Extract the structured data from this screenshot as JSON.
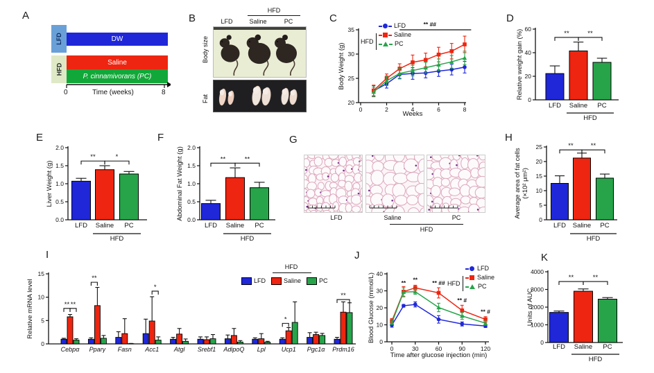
{
  "colors": {
    "lfd": "#1f27d9",
    "saline": "#ee2510",
    "pc": "#27a44a",
    "lfd_box": "#6aa0d8",
    "hfd_box": "#dfe9c6"
  },
  "panels": {
    "A": {
      "letter": "A",
      "lfd": "LFD",
      "hfd": "HFD",
      "dw": "DW",
      "saline": "Saline",
      "pc": "P. cinnamivorans (PC)",
      "tick_start": "0",
      "tick_end": "8",
      "axis_label": "Time (weeks)"
    },
    "B": {
      "letter": "B",
      "hfd": "HFD",
      "cols": [
        "LFD",
        "Saline",
        "PC"
      ],
      "rows": [
        "Body size",
        "Fat"
      ]
    },
    "C": {
      "letter": "C",
      "legend": [
        "LFD",
        "Saline",
        "PC"
      ],
      "hfd": "HFD"
    },
    "D": {
      "letter": "D"
    },
    "E": {
      "letter": "E"
    },
    "F": {
      "letter": "F"
    },
    "G": {
      "letter": "G",
      "cols": [
        "LFD",
        "Saline",
        "PC"
      ],
      "hfd": "HFD"
    },
    "H": {
      "letter": "H"
    },
    "I": {
      "letter": "I",
      "legend": [
        "LFD",
        "Saline",
        "PC"
      ],
      "hfd": "HFD"
    },
    "J": {
      "letter": "J",
      "legend": [
        "LFD",
        "Saline",
        "PC"
      ],
      "hfd": "HFD"
    },
    "K": {
      "letter": "K"
    }
  },
  "chart_data": [
    {
      "panel": "C",
      "type": "line",
      "ylabel": "Body Weight (g)",
      "xlabel": "Weeks",
      "ylim": [
        20,
        35
      ],
      "yticks": [
        20,
        25,
        30,
        35
      ],
      "ytick_labels": [
        "20",
        "25",
        "30",
        "35"
      ],
      "xticks": [
        0,
        2,
        4,
        6,
        8
      ],
      "xtick_labels": [
        "0",
        "2",
        "4",
        "6",
        "8"
      ],
      "x": [
        1,
        2,
        3,
        4,
        5,
        6,
        7,
        8
      ],
      "series": [
        {
          "name": "LFD",
          "color": "#1f27d9",
          "marker": "circle",
          "values": [
            22.4,
            23.9,
            25.8,
            26.0,
            26.1,
            26.5,
            26.8,
            27.3
          ],
          "errors": [
            1.1,
            0.9,
            0.9,
            1.2,
            1.0,
            1.1,
            1.1,
            1.2
          ]
        },
        {
          "name": "Saline",
          "color": "#ee2510",
          "marker": "square",
          "values": [
            22.5,
            25.0,
            27.0,
            28.3,
            28.8,
            29.9,
            30.6,
            32.0
          ],
          "errors": [
            1.1,
            0.9,
            1.0,
            1.5,
            1.4,
            1.5,
            1.6,
            1.7
          ]
        },
        {
          "name": "PC",
          "color": "#27a44a",
          "marker": "triangle",
          "values": [
            22.2,
            24.5,
            26.0,
            26.6,
            27.2,
            27.8,
            28.4,
            29.2
          ],
          "errors": [
            1.0,
            1.0,
            1.0,
            1.1,
            1.1,
            1.2,
            1.3,
            1.4
          ]
        }
      ],
      "sig_line": {
        "x1": 3,
        "x2": 8.5,
        "y": 35,
        "label": "** ##"
      }
    },
    {
      "panel": "D",
      "type": "bar",
      "ylabel": "Relative weight gain (%)",
      "ylim": [
        0,
        60
      ],
      "yticks": [
        0,
        20,
        40,
        60
      ],
      "ytick_labels": [
        "0",
        "20",
        "40",
        "60"
      ],
      "categories": [
        "LFD",
        "Saline",
        "PC"
      ],
      "values": [
        22.3,
        41.5,
        31.8
      ],
      "errors": [
        6.5,
        7.5,
        3.5
      ],
      "colors": [
        "#1f27d9",
        "#ee2510",
        "#27a44a"
      ],
      "group_label": "HFD",
      "sig": [
        {
          "from": 0,
          "to": 1,
          "label": "**",
          "y": 53
        },
        {
          "from": 1,
          "to": 2,
          "label": "**",
          "y": 53
        }
      ]
    },
    {
      "panel": "E",
      "type": "bar",
      "ylabel": "Liver Weight (g)",
      "ylim": [
        0,
        2
      ],
      "yticks": [
        0,
        0.5,
        1,
        1.5,
        2
      ],
      "ytick_labels": [
        "0.0",
        "0.5",
        "1.0",
        "1.5",
        "2.0"
      ],
      "categories": [
        "LFD",
        "Saline",
        "PC"
      ],
      "values": [
        1.07,
        1.39,
        1.27
      ],
      "errors": [
        0.08,
        0.11,
        0.07
      ],
      "colors": [
        "#1f27d9",
        "#ee2510",
        "#27a44a"
      ],
      "group_label": "HFD",
      "sig": [
        {
          "from": 0,
          "to": 1,
          "label": "**",
          "y": 1.63
        },
        {
          "from": 1,
          "to": 2,
          "label": "*",
          "y": 1.63
        }
      ]
    },
    {
      "panel": "F",
      "type": "bar",
      "ylabel": "Abdominal Fat Weight (g)",
      "ylim": [
        0,
        2
      ],
      "yticks": [
        0,
        0.5,
        1,
        1.5,
        2
      ],
      "ytick_labels": [
        "0.0",
        "0.5",
        "1.0",
        "1.5",
        "2.0"
      ],
      "categories": [
        "LFD",
        "Saline",
        "PC"
      ],
      "values": [
        0.45,
        1.17,
        0.89
      ],
      "errors": [
        0.09,
        0.27,
        0.15
      ],
      "colors": [
        "#1f27d9",
        "#ee2510",
        "#27a44a"
      ],
      "group_label": "HFD",
      "sig": [
        {
          "from": 0,
          "to": 1,
          "label": "**",
          "y": 1.57
        },
        {
          "from": 1,
          "to": 2,
          "label": "**",
          "y": 1.57
        }
      ]
    },
    {
      "panel": "H",
      "type": "bar",
      "ylabel_lines": [
        "Average area of fat cells",
        "(×10² μm²)"
      ],
      "ylim": [
        0,
        25
      ],
      "yticks": [
        0,
        5,
        10,
        15,
        20,
        25
      ],
      "ytick_labels": [
        "0",
        "5",
        "10",
        "15",
        "20",
        "25"
      ],
      "categories": [
        "LFD",
        "Saline",
        "PC"
      ],
      "values": [
        12.5,
        21.2,
        14.3
      ],
      "errors": [
        2.6,
        1.7,
        1.4
      ],
      "colors": [
        "#1f27d9",
        "#ee2510",
        "#27a44a"
      ],
      "group_label": "HFD",
      "sig": [
        {
          "from": 0,
          "to": 1,
          "label": "**",
          "y": 24
        },
        {
          "from": 1,
          "to": 2,
          "label": "**",
          "y": 24
        }
      ]
    },
    {
      "panel": "K",
      "type": "bar",
      "ylabel": "Units of AUC",
      "ylim": [
        0,
        4000
      ],
      "yticks": [
        0,
        1000,
        2000,
        3000,
        4000
      ],
      "ytick_labels": [
        "0",
        "1000",
        "2000",
        "3000",
        "4000"
      ],
      "categories": [
        "LFD",
        "Saline",
        "PC"
      ],
      "values": [
        1700,
        2900,
        2450
      ],
      "errors": [
        80,
        130,
        90
      ],
      "colors": [
        "#1f27d9",
        "#ee2510",
        "#27a44a"
      ],
      "group_label": "HFD",
      "sig": [
        {
          "from": 0,
          "to": 1,
          "label": "**",
          "y": 3450
        },
        {
          "from": 1,
          "to": 2,
          "label": "**",
          "y": 3450
        }
      ]
    },
    {
      "panel": "I",
      "type": "grouped-bar",
      "ylabel": "Relative mRNA level",
      "ylim": [
        0,
        15
      ],
      "yticks": [
        0,
        5,
        10,
        15
      ],
      "ytick_labels": [
        "0",
        "5",
        "10",
        "15"
      ],
      "categories": [
        "Cebpα",
        "Pparγ",
        "Fasn",
        "Acc1",
        "Atgl",
        "Srebf1",
        "AdipoQ",
        "Lpl",
        "Ucp1",
        "Pgc1α",
        "Prdm16"
      ],
      "series": [
        {
          "name": "LFD",
          "color": "#1f27d9",
          "values": [
            1.0,
            1.0,
            1.4,
            2.2,
            1.0,
            1.0,
            1.1,
            1.0,
            1.0,
            1.4,
            1.0
          ],
          "errors": [
            0.2,
            0.3,
            1.2,
            3.1,
            0.4,
            0.5,
            0.8,
            0.3,
            0.3,
            1.0,
            0.4
          ]
        },
        {
          "name": "Saline",
          "color": "#ee2510",
          "values": [
            5.8,
            8.2,
            2.2,
            4.9,
            2.1,
            0.9,
            1.8,
            1.1,
            2.8,
            2.0,
            6.8
          ],
          "errors": [
            0.5,
            3.9,
            3.2,
            5.2,
            1.2,
            0.6,
            1.5,
            1.1,
            0.7,
            0.5,
            2.2
          ]
        },
        {
          "name": "PC",
          "color": "#27a44a",
          "values": [
            0.8,
            1.2,
            0.05,
            0.8,
            0.55,
            1.1,
            0.4,
            0.35,
            4.6,
            1.8,
            6.7
          ],
          "errors": [
            0.3,
            0.6,
            0.05,
            0.7,
            0.5,
            0.9,
            0.3,
            0.2,
            4.4,
            0.45,
            2.1
          ]
        }
      ],
      "sig": [
        {
          "cat": 0,
          "pair": [
            0,
            1
          ],
          "label": "**",
          "y": 7.6
        },
        {
          "cat": 0,
          "pair": [
            1,
            2
          ],
          "label": "**",
          "y": 7.6
        },
        {
          "cat": 1,
          "pair": [
            0,
            1
          ],
          "label": "**",
          "y": 13.2
        },
        {
          "cat": 3,
          "pair": [
            1,
            2
          ],
          "label": "*",
          "y": 11.3
        },
        {
          "cat": 8,
          "pair": [
            0,
            1
          ],
          "label": "*",
          "y": 4.4
        },
        {
          "cat": 10,
          "pair": [
            0,
            2
          ],
          "label": "**",
          "y": 9.5
        }
      ]
    },
    {
      "panel": "J",
      "type": "line",
      "ylabel": "Blood Glucose (mmol/L)",
      "xlabel": "Time after glucose injection (min)",
      "ylim": [
        0,
        40
      ],
      "yticks": [
        0,
        10,
        20,
        30,
        40
      ],
      "ytick_labels": [
        "0",
        "10",
        "20",
        "30",
        "40"
      ],
      "xticks": [
        0,
        30,
        60,
        90,
        120
      ],
      "xtick_labels": [
        "0",
        "30",
        "60",
        "90",
        "120"
      ],
      "x": [
        0,
        15,
        30,
        60,
        90,
        120
      ],
      "series": [
        {
          "name": "LFD",
          "color": "#1f27d9",
          "marker": "circle",
          "values": [
            9.8,
            21.2,
            22.0,
            13.2,
            10.5,
            9.3
          ],
          "errors": [
            1.2,
            0.8,
            1.5,
            2.2,
            1.2,
            0.9
          ]
        },
        {
          "name": "Saline",
          "color": "#ee2510",
          "marker": "square",
          "values": [
            12.2,
            29.5,
            31.8,
            28.8,
            18.5,
            13.2
          ],
          "errors": [
            1.5,
            3.0,
            1.5,
            3.0,
            3.0,
            1.6
          ]
        },
        {
          "name": "PC",
          "color": "#27a44a",
          "marker": "triangle",
          "values": [
            11.2,
            29.3,
            29.5,
            20.2,
            15.2,
            11.0
          ],
          "errors": [
            1.0,
            2.5,
            1.5,
            2.5,
            2.0,
            1.2
          ]
        }
      ],
      "annotations": [
        {
          "x": 15,
          "y": 33.5,
          "label": "**"
        },
        {
          "x": 30,
          "y": 35.3,
          "label": "**"
        },
        {
          "x": 60,
          "y": 33.5,
          "label": "** ##"
        },
        {
          "x": 90,
          "y": 23.2,
          "label": "** #"
        },
        {
          "x": 120,
          "y": 16.5,
          "label": "** #"
        }
      ]
    }
  ]
}
